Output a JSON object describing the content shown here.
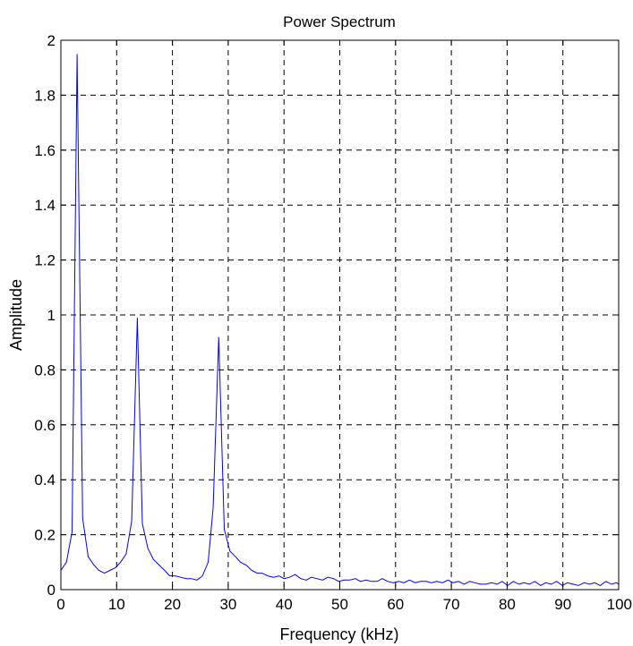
{
  "chart_data": {
    "type": "line",
    "title": "Power Spectrum",
    "xlabel": "Frequency (kHz)",
    "ylabel": "Amplitude",
    "xlim": [
      0,
      100
    ],
    "ylim": [
      0,
      2
    ],
    "x_ticks": [
      0,
      10,
      20,
      30,
      40,
      50,
      60,
      70,
      80,
      90,
      100
    ],
    "x_tick_labels": [
      "0",
      "10",
      "20",
      "30",
      "40",
      "50",
      "60",
      "70",
      "80",
      "90",
      "100"
    ],
    "y_ticks": [
      0,
      0.2,
      0.4,
      0.6,
      0.8,
      1,
      1.2,
      1.4,
      1.6,
      1.8,
      2
    ],
    "y_tick_labels": [
      "0",
      "0.2",
      "0.4",
      "0.6",
      "0.8",
      "1",
      "1.2",
      "1.4",
      "1.6",
      "1.8",
      "2"
    ],
    "grid": true,
    "line_color": "#0000ff",
    "series": [
      {
        "x": [
          0,
          1,
          2,
          2.9,
          3.9,
          4.9,
          5.9,
          6.8,
          7.8,
          8.8,
          9.8,
          10.7,
          11.7,
          12.7,
          13.7,
          14.6,
          15.6,
          16.6,
          17.6,
          18.6,
          19.5,
          20.5,
          21.5,
          22.5,
          23.4,
          24.4,
          25.4,
          26.4,
          27.3,
          28.3,
          29.3,
          30.3,
          31.3,
          32.2,
          33.2,
          34.2,
          35.2,
          36.1,
          37.1,
          38.1,
          39.1,
          40,
          41,
          42,
          43,
          44,
          44.9,
          45.9,
          46.9,
          47.9,
          48.9,
          49.8,
          50.8,
          51.8,
          52.8,
          53.7,
          54.7,
          55.7,
          56.7,
          57.6,
          58.6,
          59.6,
          60.6,
          61.5,
          62.5,
          63.5,
          64.5,
          65.5,
          66.4,
          67.4,
          68.4,
          69.4,
          70.3,
          71.3,
          72.3,
          73.3,
          74.2,
          75.2,
          76.2,
          77.2,
          78.2,
          79.1,
          80.1,
          81.1,
          82.1,
          83,
          84,
          85,
          86,
          86.9,
          87.9,
          88.9,
          89.9,
          90.8,
          91.8,
          92.8,
          93.8,
          94.8,
          95.7,
          96.7,
          97.7,
          98.7,
          99.6,
          100
        ],
        "y": [
          0.07,
          0.1,
          0.21,
          1.95,
          0.26,
          0.12,
          0.09,
          0.07,
          0.06,
          0.07,
          0.08,
          0.1,
          0.13,
          0.25,
          0.99,
          0.24,
          0.15,
          0.11,
          0.09,
          0.07,
          0.05,
          0.05,
          0.045,
          0.04,
          0.04,
          0.035,
          0.05,
          0.1,
          0.3,
          0.92,
          0.22,
          0.14,
          0.12,
          0.1,
          0.09,
          0.07,
          0.06,
          0.06,
          0.05,
          0.045,
          0.05,
          0.04,
          0.045,
          0.055,
          0.04,
          0.035,
          0.045,
          0.04,
          0.035,
          0.045,
          0.04,
          0.03,
          0.035,
          0.035,
          0.04,
          0.03,
          0.035,
          0.03,
          0.03,
          0.04,
          0.03,
          0.025,
          0.03,
          0.025,
          0.035,
          0.025,
          0.03,
          0.03,
          0.025,
          0.03,
          0.025,
          0.035,
          0.025,
          0.03,
          0.02,
          0.03,
          0.025,
          0.02,
          0.02,
          0.025,
          0.02,
          0.03,
          0.015,
          0.03,
          0.02,
          0.025,
          0.02,
          0.03,
          0.015,
          0.025,
          0.02,
          0.03,
          0.015,
          0.025,
          0.02,
          0.015,
          0.025,
          0.02,
          0.025,
          0.015,
          0.03,
          0.02,
          0.025,
          0.02
        ]
      }
    ]
  }
}
